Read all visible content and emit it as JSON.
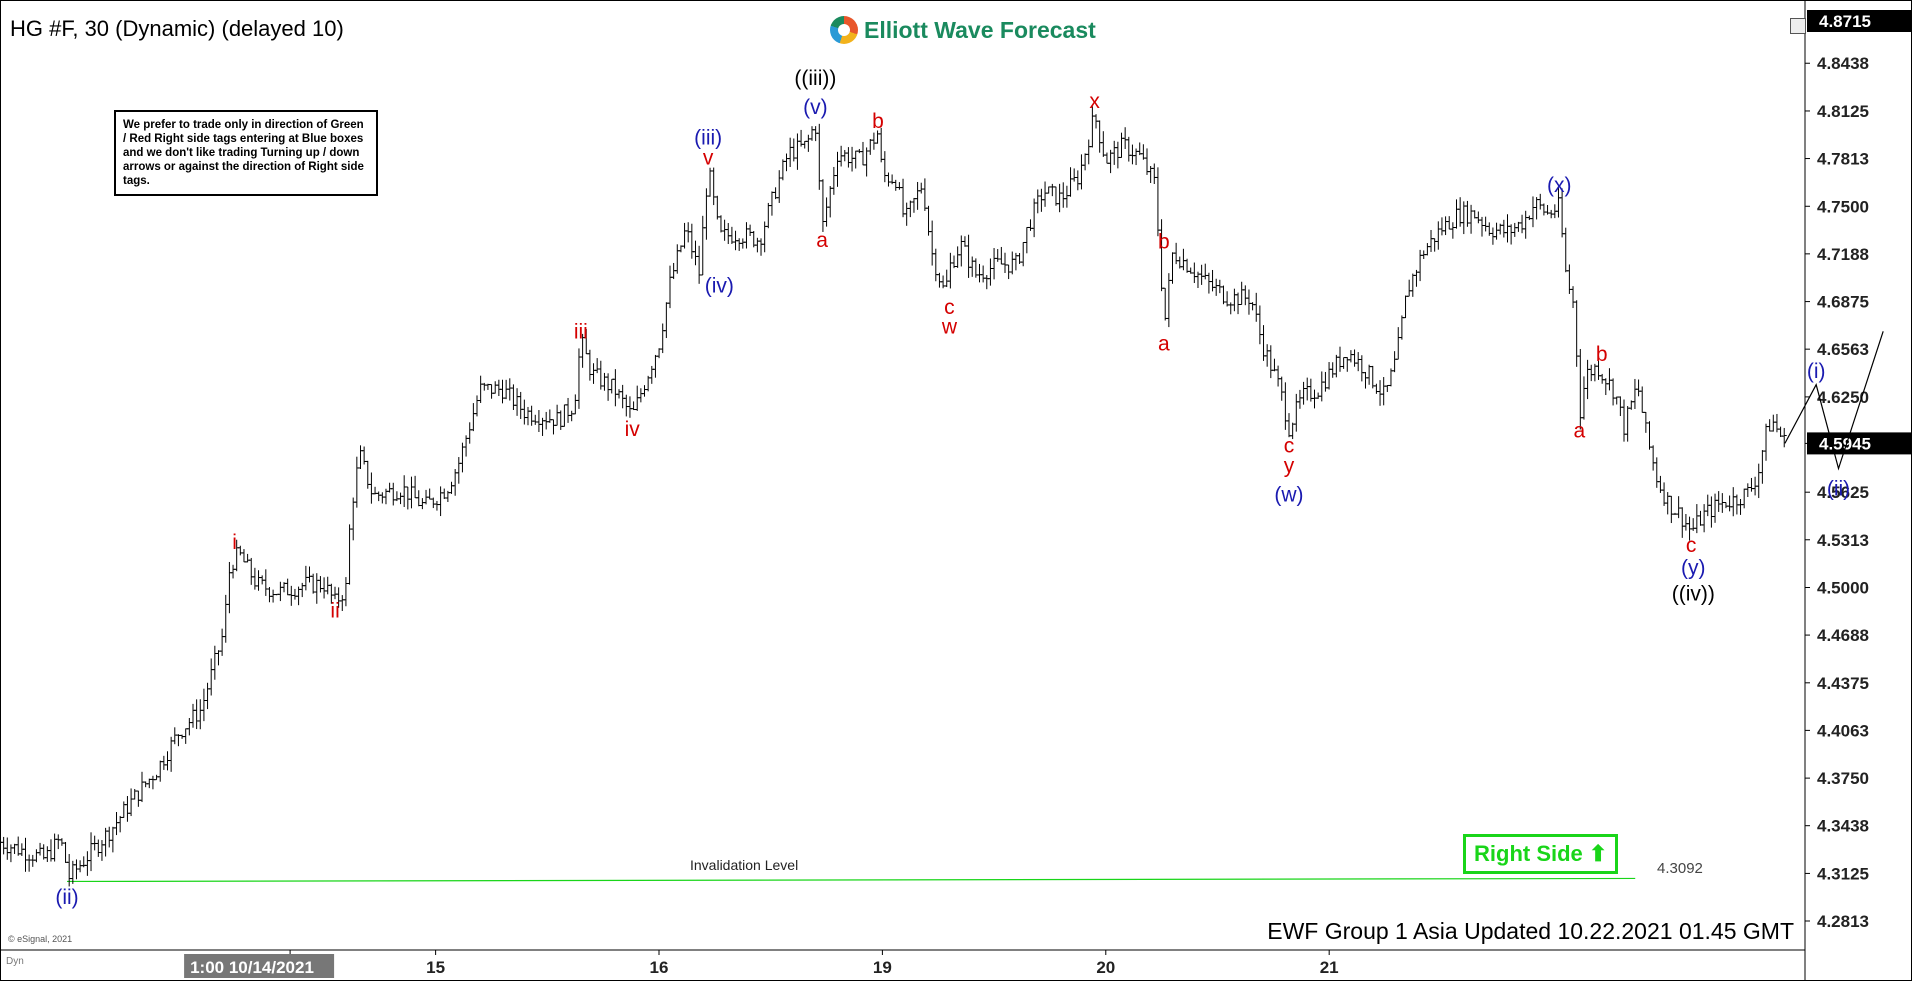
{
  "header": {
    "symbol_title": "HG #F, 30 (Dynamic) (delayed 10)",
    "logo_text": "Elliott Wave Forecast"
  },
  "note_text": "We prefer to trade only in direction of Green / Red Right side tags entering at Blue boxes and we don't like trading Turning up / down arrows or against the direction of Right side tags.",
  "footer": {
    "updated_text": "EWF Group 1 Asia Updated 10.22.2021 01.45 GMT",
    "copyright": "© eSignal, 2021",
    "dyn_label": "Dyn"
  },
  "right_side_tag": {
    "label": "Right Side",
    "color": "#19d519",
    "direction": "up"
  },
  "chart_data": {
    "type": "bar",
    "ylim": [
      4.2813,
      4.8715
    ],
    "y_ticks": [
      "4.8438",
      "4.8125",
      "4.7813",
      "4.7500",
      "4.7188",
      "4.6875",
      "4.6563",
      "4.6250",
      "4.5945",
      "4.5625",
      "4.5313",
      "4.5000",
      "4.4688",
      "4.4375",
      "4.4063",
      "4.3750",
      "4.3438",
      "4.3125",
      "4.2813"
    ],
    "y_top_label": "4.8715",
    "current_price": {
      "label": "4.5945",
      "value": 4.5945
    },
    "x_labels": [
      {
        "text": "1:00 10/14/2021",
        "t": 0.08,
        "highlight": true
      },
      {
        "text": "15",
        "t": 1.0
      },
      {
        "text": "16",
        "t": 2.0
      },
      {
        "text": "19",
        "t": 3.0
      },
      {
        "text": "20",
        "t": 4.0
      },
      {
        "text": "21",
        "t": 5.0
      }
    ],
    "xlim": [
      -0.95,
      7.13
    ],
    "invalidation": {
      "label": "Invalidation Level",
      "value_label": "4.3092",
      "value": 4.3092,
      "t_start": -0.65,
      "t_end": 6.37,
      "color": "#19d519"
    },
    "price_path": [
      [
        -0.95,
        4.333
      ],
      [
        -0.75,
        4.322
      ],
      [
        -0.68,
        4.335
      ],
      [
        -0.64,
        4.31
      ],
      [
        -0.45,
        4.342
      ],
      [
        -0.35,
        4.362
      ],
      [
        -0.25,
        4.38
      ],
      [
        -0.15,
        4.405
      ],
      [
        -0.05,
        4.42
      ],
      [
        0.0,
        4.445
      ],
      [
        0.05,
        4.47
      ],
      [
        0.08,
        4.515
      ],
      [
        0.12,
        4.522
      ],
      [
        0.2,
        4.502
      ],
      [
        0.3,
        4.497
      ],
      [
        0.42,
        4.502
      ],
      [
        0.5,
        4.502
      ],
      [
        0.55,
        4.49
      ],
      [
        0.6,
        4.5
      ],
      [
        0.62,
        4.55
      ],
      [
        0.66,
        4.587
      ],
      [
        0.72,
        4.56
      ],
      [
        0.85,
        4.565
      ],
      [
        0.95,
        4.553
      ],
      [
        1.05,
        4.565
      ],
      [
        1.1,
        4.58
      ],
      [
        1.15,
        4.605
      ],
      [
        1.2,
        4.63
      ],
      [
        1.3,
        4.63
      ],
      [
        1.4,
        4.615
      ],
      [
        1.55,
        4.61
      ],
      [
        1.62,
        4.62
      ],
      [
        1.65,
        4.662
      ],
      [
        1.7,
        4.64
      ],
      [
        1.8,
        4.63
      ],
      [
        1.88,
        4.612
      ],
      [
        1.95,
        4.64
      ],
      [
        2.0,
        4.66
      ],
      [
        2.05,
        4.7
      ],
      [
        2.12,
        4.735
      ],
      [
        2.18,
        4.706
      ],
      [
        2.22,
        4.775
      ],
      [
        2.27,
        4.73
      ],
      [
        2.35,
        4.732
      ],
      [
        2.45,
        4.728
      ],
      [
        2.52,
        4.76
      ],
      [
        2.58,
        4.785
      ],
      [
        2.66,
        4.79
      ],
      [
        2.7,
        4.805
      ],
      [
        2.73,
        4.735
      ],
      [
        2.8,
        4.785
      ],
      [
        2.9,
        4.78
      ],
      [
        2.98,
        4.798
      ],
      [
        3.0,
        4.77
      ],
      [
        3.06,
        4.768
      ],
      [
        3.1,
        4.74
      ],
      [
        3.18,
        4.765
      ],
      [
        3.22,
        4.72
      ],
      [
        3.28,
        4.692
      ],
      [
        3.3,
        4.71
      ],
      [
        3.35,
        4.725
      ],
      [
        3.42,
        4.705
      ],
      [
        3.52,
        4.712
      ],
      [
        3.6,
        4.712
      ],
      [
        3.66,
        4.74
      ],
      [
        3.72,
        4.76
      ],
      [
        3.8,
        4.755
      ],
      [
        3.88,
        4.77
      ],
      [
        3.95,
        4.81
      ],
      [
        4.0,
        4.78
      ],
      [
        4.08,
        4.79
      ],
      [
        4.15,
        4.783
      ],
      [
        4.22,
        4.765
      ],
      [
        4.25,
        4.7
      ],
      [
        4.26,
        4.669
      ],
      [
        4.3,
        4.72
      ],
      [
        4.38,
        4.71
      ],
      [
        4.45,
        4.7
      ],
      [
        4.55,
        4.69
      ],
      [
        4.65,
        4.69
      ],
      [
        4.7,
        4.66
      ],
      [
        4.78,
        4.63
      ],
      [
        4.82,
        4.605
      ],
      [
        4.88,
        4.625
      ],
      [
        4.95,
        4.63
      ],
      [
        5.0,
        4.64
      ],
      [
        5.08,
        4.655
      ],
      [
        5.15,
        4.645
      ],
      [
        5.25,
        4.625
      ],
      [
        5.3,
        4.65
      ],
      [
        5.35,
        4.695
      ],
      [
        5.42,
        4.72
      ],
      [
        5.5,
        4.735
      ],
      [
        5.58,
        4.745
      ],
      [
        5.65,
        4.745
      ],
      [
        5.72,
        4.735
      ],
      [
        5.8,
        4.733
      ],
      [
        5.87,
        4.74
      ],
      [
        5.92,
        4.752
      ],
      [
        5.98,
        4.745
      ],
      [
        6.03,
        4.75
      ],
      [
        6.06,
        4.705
      ],
      [
        6.1,
        4.682
      ],
      [
        6.12,
        4.612
      ],
      [
        6.15,
        4.64
      ],
      [
        6.2,
        4.645
      ],
      [
        6.28,
        4.628
      ],
      [
        6.32,
        4.605
      ],
      [
        6.38,
        4.633
      ],
      [
        6.42,
        4.6
      ],
      [
        6.47,
        4.57
      ],
      [
        6.52,
        4.555
      ],
      [
        6.57,
        4.548
      ],
      [
        6.62,
        4.537
      ],
      [
        6.68,
        4.548
      ],
      [
        6.75,
        4.555
      ],
      [
        6.82,
        4.558
      ],
      [
        6.88,
        4.563
      ],
      [
        6.92,
        4.575
      ],
      [
        6.95,
        4.598
      ],
      [
        6.98,
        4.61
      ],
      [
        7.04,
        4.595
      ]
    ],
    "projection": [
      [
        7.04,
        4.5945
      ],
      [
        7.18,
        4.633
      ],
      [
        7.28,
        4.578
      ],
      [
        7.48,
        4.668
      ]
    ],
    "wave_labels": [
      {
        "text": "(ii)",
        "t": -0.65,
        "y": 4.297,
        "color": "#1a1ab0"
      },
      {
        "text": "i",
        "t": 0.1,
        "y": 4.53,
        "color": "#d40000"
      },
      {
        "text": "ii",
        "t": 0.55,
        "y": 4.485,
        "color": "#d40000"
      },
      {
        "text": "iii",
        "t": 1.65,
        "y": 4.668,
        "color": "#d40000"
      },
      {
        "text": "iv",
        "t": 1.88,
        "y": 4.604,
        "color": "#d40000"
      },
      {
        "text": "v",
        "t": 2.22,
        "y": 4.782,
        "color": "#d40000"
      },
      {
        "text": "(iii)",
        "t": 2.22,
        "y": 4.795,
        "color": "#1a1ab0"
      },
      {
        "text": "(iv)",
        "t": 2.27,
        "y": 4.698,
        "color": "#1a1ab0"
      },
      {
        "text": "(v)",
        "t": 2.7,
        "y": 4.815,
        "color": "#1a1ab0"
      },
      {
        "text": "((iii))",
        "t": 2.7,
        "y": 4.834,
        "color": "#000000"
      },
      {
        "text": "a",
        "t": 2.73,
        "y": 4.728,
        "color": "#d40000"
      },
      {
        "text": "b",
        "t": 2.98,
        "y": 4.806,
        "color": "#d40000"
      },
      {
        "text": "c",
        "t": 3.3,
        "y": 4.684,
        "color": "#d40000"
      },
      {
        "text": "w",
        "t": 3.3,
        "y": 4.671,
        "color": "#d40000"
      },
      {
        "text": "x",
        "t": 3.95,
        "y": 4.819,
        "color": "#d40000"
      },
      {
        "text": "a",
        "t": 4.26,
        "y": 4.66,
        "color": "#d40000"
      },
      {
        "text": "b",
        "t": 4.26,
        "y": 4.727,
        "color": "#d40000"
      },
      {
        "text": "c",
        "t": 4.82,
        "y": 4.593,
        "color": "#d40000"
      },
      {
        "text": "y",
        "t": 4.82,
        "y": 4.58,
        "color": "#d40000"
      },
      {
        "text": "(w)",
        "t": 4.82,
        "y": 4.561,
        "color": "#1a1ab0"
      },
      {
        "text": "(x)",
        "t": 6.03,
        "y": 4.764,
        "color": "#1a1ab0"
      },
      {
        "text": "a",
        "t": 6.12,
        "y": 4.603,
        "color": "#d40000"
      },
      {
        "text": "b",
        "t": 6.22,
        "y": 4.653,
        "color": "#d40000"
      },
      {
        "text": "c",
        "t": 6.62,
        "y": 4.528,
        "color": "#d40000"
      },
      {
        "text": "(y)",
        "t": 6.63,
        "y": 4.513,
        "color": "#1a1ab0"
      },
      {
        "text": "((iv))",
        "t": 6.63,
        "y": 4.496,
        "color": "#000000"
      },
      {
        "text": "(i)",
        "t": 7.18,
        "y": 4.642,
        "color": "#1a1ab0"
      },
      {
        "text": "(ii)",
        "t": 7.28,
        "y": 4.565,
        "color": "#1a1ab0"
      }
    ]
  }
}
